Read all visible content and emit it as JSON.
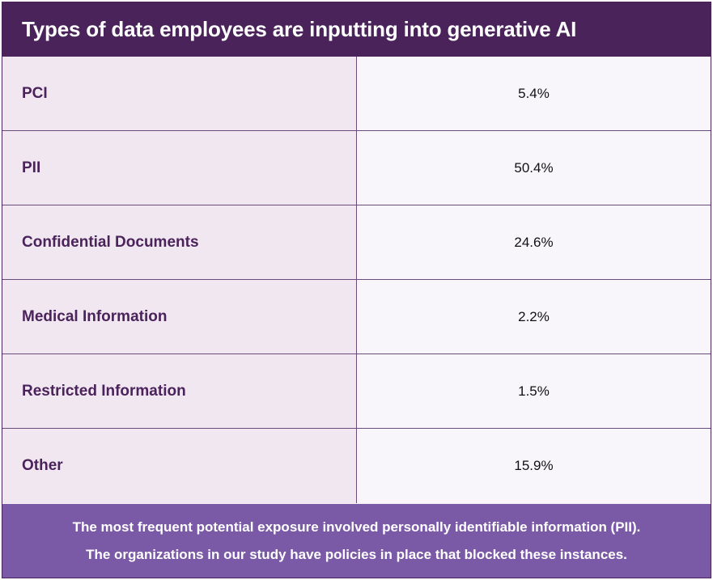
{
  "chart_data": {
    "type": "table",
    "title": "Types of data employees are inputting into generative AI",
    "categories": [
      "PCI",
      "PII",
      "Confidential Documents",
      "Medical Information",
      "Restricted Information",
      "Other"
    ],
    "values": [
      5.4,
      50.4,
      24.6,
      2.2,
      1.5,
      15.9
    ],
    "value_labels": [
      "5.4%",
      "50.4%",
      "24.6%",
      "2.2%",
      "1.5%",
      "15.9%"
    ],
    "footnote": [
      "The most frequent potential exposure involved personally identifiable information (PII).",
      "The organizations in our study have policies in place that blocked these instances."
    ]
  },
  "colors": {
    "header_bg": "#4a235a",
    "label_bg": "#f1e7f1",
    "value_bg": "#f8f6fa",
    "label_text": "#4a235a",
    "footer_bg": "#7a5aa6"
  }
}
